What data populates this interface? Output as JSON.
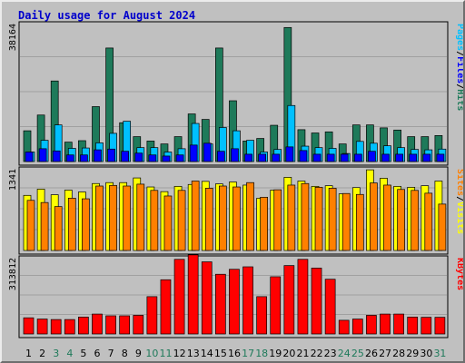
{
  "colors": {
    "background": "#c0c0c0",
    "panel_border": "#000000",
    "title": "#0000cc",
    "pages": "#00c0ff",
    "files": "#0000ff",
    "hits": "#1e7a5a",
    "sites": "#ff8000",
    "visits": "#ffff00",
    "kbytes": "#ff0000",
    "weekend_label": "#1e7a5a",
    "weekday_label": "#000000"
  },
  "chart_data": {
    "type": "bar",
    "title": "Daily usage for August 2024",
    "categories": [
      "1",
      "2",
      "3",
      "4",
      "5",
      "6",
      "7",
      "8",
      "9",
      "10",
      "11",
      "12",
      "13",
      "14",
      "15",
      "16",
      "17",
      "18",
      "19",
      "20",
      "21",
      "22",
      "23",
      "24",
      "25",
      "26",
      "27",
      "28",
      "29",
      "30",
      "31"
    ],
    "weekend_days": [
      "3",
      "4",
      "10",
      "11",
      "17",
      "18",
      "24",
      "25",
      "31"
    ],
    "panels": [
      {
        "id": "hits",
        "max_label": "38164",
        "ylim": [
          0,
          38164
        ],
        "legend": [
          {
            "name": "Pages",
            "color": "#00c0ff"
          },
          {
            "name": "/",
            "color": "#000000"
          },
          {
            "name": "Files",
            "color": "#0000ff"
          },
          {
            "name": "/",
            "color": "#000000"
          },
          {
            "name": "Hits",
            "color": "#1e7a5a"
          }
        ],
        "series": [
          {
            "name": "Hits",
            "values": [
              8400,
              12700,
              22000,
              5300,
              5700,
              15000,
              31000,
              10600,
              6800,
              5600,
              4800,
              6800,
              13000,
              11500,
              31000,
              16600,
              5600,
              6300,
              9900,
              36600,
              8700,
              7800,
              8100,
              4800,
              10000,
              10000,
              9200,
              8600,
              6800,
              6800,
              7100
            ]
          },
          {
            "name": "Files",
            "values": [
              2600,
              3500,
              2900,
              1800,
              1800,
              3200,
              3400,
              2800,
              2300,
              1800,
              1500,
              1800,
              4500,
              5000,
              2800,
              3500,
              2000,
              2000,
              2000,
              4000,
              3000,
              2000,
              2000,
              2000,
              2000,
              2800,
              2000,
              2000,
              2000,
              2000,
              2000
            ]
          },
          {
            "name": "Pages",
            "values": [
              2600,
              5800,
              10000,
              3600,
              3700,
              5100,
              7700,
              11000,
              3800,
              3800,
              2600,
              3500,
              10400,
              4800,
              9300,
              8400,
              5800,
              2600,
              3300,
              15300,
              4200,
              3800,
              3600,
              2200,
              5500,
              5000,
              4300,
              3800,
              3300,
              3200,
              3400
            ]
          }
        ]
      },
      {
        "id": "visits",
        "max_label": "1341",
        "ylim": [
          0,
          1341
        ],
        "legend": [
          {
            "name": "Sites",
            "color": "#ff8000"
          },
          {
            "name": "/",
            "color": "#000000"
          },
          {
            "name": "Visits",
            "color": "#ffff00"
          }
        ],
        "series": [
          {
            "name": "Visits",
            "values": [
              885,
              985,
              895,
              970,
              940,
              1075,
              1090,
              1090,
              1165,
              1020,
              945,
              1030,
              1060,
              1110,
              1070,
              1100,
              1050,
              840,
              970,
              1175,
              1115,
              1030,
              1040,
              910,
              1010,
              1295,
              1160,
              1030,
              1015,
              1040,
              1115
            ]
          },
          {
            "name": "Sites",
            "values": [
              805,
              770,
              705,
              840,
              830,
              1035,
              1045,
              1035,
              1065,
              965,
              875,
              965,
              1115,
              1000,
              1035,
              1020,
              1090,
              855,
              975,
              1050,
              1075,
              1015,
              1000,
              915,
              900,
              1085,
              1050,
              980,
              965,
              920,
              745
            ]
          }
        ]
      },
      {
        "id": "kbytes",
        "max_label": "313812",
        "ylim": [
          0,
          313812
        ],
        "legend": [
          {
            "name": "KBytes",
            "color": "#ff0000"
          }
        ],
        "series": [
          {
            "name": "KBytes",
            "values": [
              65000,
              60000,
              58000,
              58000,
              68000,
              80000,
              73000,
              73000,
              75000,
              150000,
              218000,
              300000,
              318000,
              290000,
              240000,
              260000,
              270000,
              150000,
              230000,
              275000,
              300000,
              265000,
              220000,
              55000,
              60000,
              75000,
              80000,
              80000,
              68000,
              67000,
              67000
            ]
          }
        ]
      }
    ]
  }
}
